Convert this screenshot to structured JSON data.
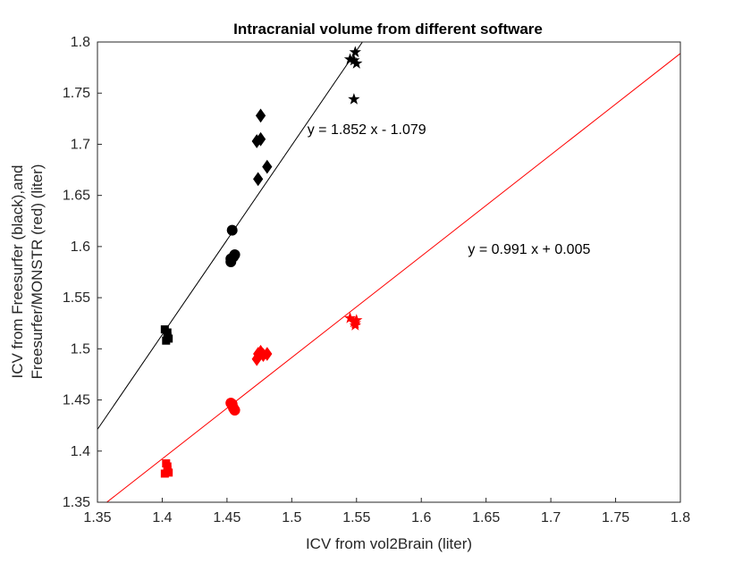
{
  "chart_data": {
    "type": "scatter",
    "title": "Intracranial volume from different software",
    "xlabel": "ICV from vol2Brain (liter)",
    "ylabel_lines": [
      "ICV from Freesurfer (black),and",
      "Freesurfer/MONSTR (red) (liter)"
    ],
    "xlim": [
      1.35,
      1.8
    ],
    "ylim": [
      1.35,
      1.8
    ],
    "x_ticks": [
      "1.35",
      "1.4",
      "1.45",
      "1.5",
      "1.55",
      "1.6",
      "1.65",
      "1.7",
      "1.75",
      "1.8"
    ],
    "y_ticks": [
      "1.35",
      "1.4",
      "1.45",
      "1.5",
      "1.55",
      "1.6",
      "1.65",
      "1.7",
      "1.75",
      "1.8"
    ],
    "grid": false,
    "series": [
      {
        "color": "#000000",
        "groups": [
          {
            "marker": "square",
            "points": [
              [
                1.402,
                1.519
              ],
              [
                1.404,
                1.516
              ],
              [
                1.403,
                1.508
              ],
              [
                1.405,
                1.51
              ],
              [
                1.404,
                1.512
              ]
            ]
          },
          {
            "marker": "circle",
            "points": [
              [
                1.454,
                1.616
              ],
              [
                1.453,
                1.585
              ],
              [
                1.455,
                1.59
              ],
              [
                1.456,
                1.592
              ],
              [
                1.453,
                1.588
              ]
            ]
          },
          {
            "marker": "diamond",
            "points": [
              [
                1.476,
                1.728
              ],
              [
                1.473,
                1.703
              ],
              [
                1.476,
                1.705
              ],
              [
                1.474,
                1.666
              ],
              [
                1.481,
                1.678
              ]
            ]
          },
          {
            "marker": "star",
            "points": [
              [
                1.545,
                1.783
              ],
              [
                1.549,
                1.79
              ],
              [
                1.548,
                1.782
              ],
              [
                1.55,
                1.779
              ],
              [
                1.548,
                1.744
              ]
            ]
          }
        ],
        "fit": {
          "slope": 1.852,
          "intercept": -1.079,
          "label": "y = 1.852 x - 1.079"
        }
      },
      {
        "color": "#ff0000",
        "groups": [
          {
            "marker": "square",
            "points": [
              [
                1.403,
                1.388
              ],
              [
                1.404,
                1.385
              ],
              [
                1.402,
                1.378
              ],
              [
                1.405,
                1.379
              ],
              [
                1.404,
                1.382
              ]
            ]
          },
          {
            "marker": "circle",
            "points": [
              [
                1.453,
                1.447
              ],
              [
                1.454,
                1.446
              ],
              [
                1.455,
                1.442
              ],
              [
                1.456,
                1.44
              ],
              [
                1.454,
                1.445
              ]
            ]
          },
          {
            "marker": "diamond",
            "points": [
              [
                1.476,
                1.497
              ],
              [
                1.473,
                1.49
              ],
              [
                1.474,
                1.495
              ],
              [
                1.481,
                1.495
              ],
              [
                1.478,
                1.494
              ]
            ]
          },
          {
            "marker": "star",
            "points": [
              [
                1.545,
                1.53
              ],
              [
                1.549,
                1.523
              ],
              [
                1.548,
                1.526
              ],
              [
                1.55,
                1.528
              ],
              [
                1.549,
                1.525
              ]
            ]
          }
        ],
        "fit": {
          "slope": 0.991,
          "intercept": 0.005,
          "label": "y = 0.991 x + 0.005"
        }
      }
    ],
    "annotations": [
      {
        "text": "y = 1.852 x - 1.079",
        "x": 1.512,
        "y": 1.71
      },
      {
        "text": "y = 0.991 x + 0.005",
        "x": 1.636,
        "y": 1.593
      }
    ]
  }
}
